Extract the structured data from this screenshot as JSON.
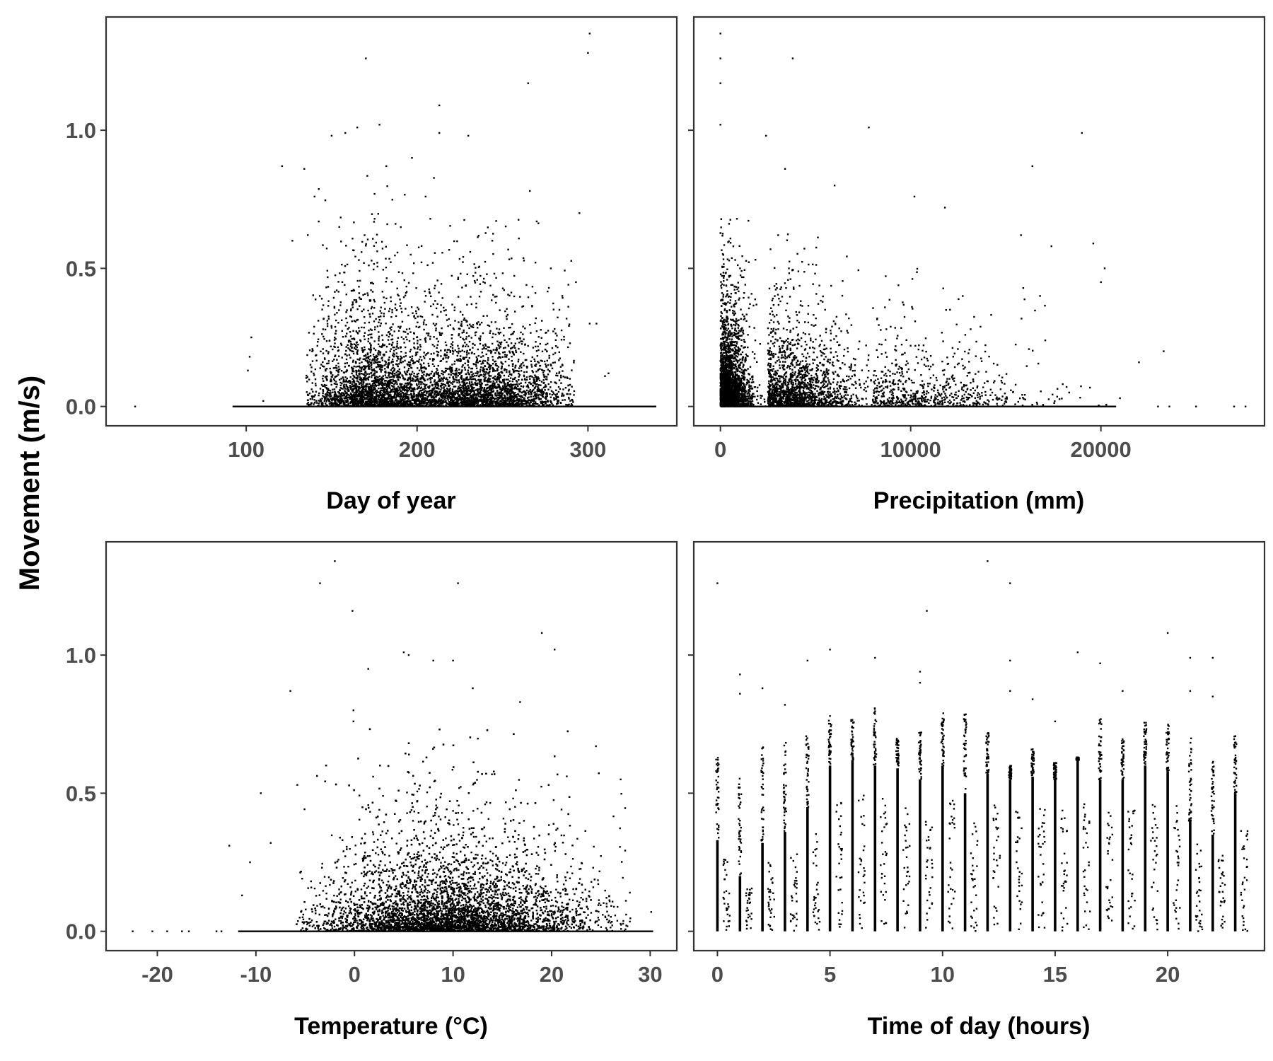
{
  "figure": {
    "ylabel": "Movement (m/s)",
    "point_color": "#000000",
    "tick_text_color": "#4d4d4d",
    "frame_color": "#333333"
  },
  "chart_data": [
    {
      "type": "scatter",
      "panel": "top-left",
      "xlabel": "Day of year",
      "ylabel": "Movement (m/s)",
      "xlim": [
        18,
        352
      ],
      "ylim": [
        -0.07,
        1.41
      ],
      "xticks": [
        100,
        200,
        300
      ],
      "xtick_labels": [
        "100",
        "200",
        "300"
      ],
      "yticks": [
        0,
        0.5,
        1.0
      ],
      "ytick_labels": [
        "0.0",
        "0.5",
        "1.0"
      ],
      "grid": false,
      "zero_line_x": [
        92,
        340
      ],
      "points": [
        [
          35,
          0
        ],
        [
          101,
          0.13
        ],
        [
          103,
          0.25
        ],
        [
          102,
          0.18
        ],
        [
          110,
          0.02
        ],
        [
          121,
          0.87
        ],
        [
          127,
          0.6
        ],
        [
          134,
          0.86
        ],
        [
          140,
          0.76
        ],
        [
          150,
          0.98
        ],
        [
          158,
          0.99
        ],
        [
          165,
          1.01
        ],
        [
          170,
          1.26
        ],
        [
          178,
          1.02
        ],
        [
          182,
          0.87
        ],
        [
          197,
          0.9
        ],
        [
          205,
          0.76
        ],
        [
          213,
          1.09
        ],
        [
          213,
          0.99
        ],
        [
          230,
          0.98
        ],
        [
          244,
          0.6
        ],
        [
          265,
          1.17
        ],
        [
          266,
          0.78
        ],
        [
          270,
          0.67
        ],
        [
          295,
          0.7
        ],
        [
          300,
          1.28
        ],
        [
          301,
          1.35
        ],
        [
          301,
          0.3
        ],
        [
          305,
          0.3
        ],
        [
          310,
          0.11
        ],
        [
          312,
          0.12
        ],
        [
          285,
          0.4
        ],
        [
          293,
          0.45
        ],
        [
          320,
          0
        ],
        [
          338,
          0
        ]
      ],
      "density_clusters": [
        {
          "x_center": 172,
          "x_spread": 18,
          "y_scale": 0.16,
          "n": 1800
        },
        {
          "x_center": 240,
          "x_spread": 26,
          "y_scale": 0.13,
          "n": 2200
        },
        {
          "x_center": 205,
          "x_spread": 40,
          "y_scale": 0.11,
          "n": 1200
        }
      ],
      "density_x_range": [
        135,
        292
      ]
    },
    {
      "type": "scatter",
      "panel": "top-right",
      "xlabel": "Precipitation (mm)",
      "ylabel": "Movement (m/s)",
      "xlim": [
        -1400,
        28600
      ],
      "ylim": [
        -0.07,
        1.41
      ],
      "xticks": [
        0,
        10000,
        20000
      ],
      "xtick_labels": [
        "0",
        "10000",
        "20000"
      ],
      "yticks": [
        0,
        0.5,
        1.0
      ],
      "ytick_labels": [
        "0.0",
        "0.5",
        "1.0"
      ],
      "grid": false,
      "zero_line_x": [
        0,
        20800
      ],
      "points": [
        [
          0,
          1.35
        ],
        [
          0,
          1.26
        ],
        [
          0,
          1.17
        ],
        [
          0,
          1.02
        ],
        [
          3800,
          1.26
        ],
        [
          7800,
          1.01
        ],
        [
          19000,
          0.99
        ],
        [
          16400,
          0.87
        ],
        [
          10200,
          0.76
        ],
        [
          11800,
          0.72
        ],
        [
          15800,
          0.62
        ],
        [
          17400,
          0.58
        ],
        [
          19600,
          0.59
        ],
        [
          20200,
          0.5
        ],
        [
          20000,
          0.45
        ],
        [
          16800,
          0.4
        ],
        [
          23300,
          0.2
        ],
        [
          22000,
          0.16
        ],
        [
          21000,
          0.03
        ],
        [
          23000,
          0
        ],
        [
          23600,
          0
        ],
        [
          25000,
          0
        ],
        [
          27000,
          0
        ],
        [
          27600,
          0
        ],
        [
          2400,
          0.98
        ],
        [
          3400,
          0.86
        ],
        [
          6000,
          0.8
        ]
      ],
      "density_clusters": [
        {
          "x_center": 0,
          "x_spread": 700,
          "y_scale": 0.13,
          "n": 2600
        },
        {
          "x_center": 2500,
          "x_spread": 2200,
          "y_scale": 0.12,
          "n": 1700
        },
        {
          "x_center": 8000,
          "x_spread": 4000,
          "y_scale": 0.1,
          "n": 700
        }
      ],
      "density_x_range": [
        0,
        20600
      ]
    },
    {
      "type": "scatter",
      "panel": "bottom-left",
      "xlabel": "Temperature (°C)",
      "ylabel": "Movement (m/s)",
      "xlim": [
        -25.2,
        32.7
      ],
      "ylim": [
        -0.07,
        1.41
      ],
      "xticks": [
        -20,
        -10,
        0,
        10,
        20,
        30
      ],
      "xtick_labels": [
        "-20",
        "-10",
        "0",
        "10",
        "20",
        "30"
      ],
      "yticks": [
        0,
        0.5,
        1.0
      ],
      "ytick_labels": [
        "0.0",
        "0.5",
        "1.0"
      ],
      "grid": false,
      "zero_line_x": [
        -11.8,
        30.3
      ],
      "points": [
        [
          -22.5,
          0
        ],
        [
          -20.5,
          0
        ],
        [
          -19,
          0
        ],
        [
          -17.5,
          0
        ],
        [
          -16.8,
          0
        ],
        [
          -14,
          0
        ],
        [
          -13.5,
          0
        ],
        [
          -12.7,
          0.31
        ],
        [
          -11.4,
          0.13
        ],
        [
          -10.6,
          0.25
        ],
        [
          -9.5,
          0.5
        ],
        [
          -8.5,
          0.32
        ],
        [
          -6.5,
          0.87
        ],
        [
          -5.8,
          0.53
        ],
        [
          -3.5,
          1.26
        ],
        [
          -2,
          1.34
        ],
        [
          -0.2,
          1.16
        ],
        [
          1.4,
          0.95
        ],
        [
          5,
          1.01
        ],
        [
          5.5,
          1.0
        ],
        [
          8,
          0.98
        ],
        [
          10,
          0.98
        ],
        [
          10.5,
          1.26
        ],
        [
          12,
          0.88
        ],
        [
          16.8,
          0.83
        ],
        [
          19,
          1.08
        ],
        [
          20.3,
          1.02
        ],
        [
          24.5,
          0.67
        ],
        [
          27,
          0.55
        ],
        [
          30.1,
          0.07
        ],
        [
          -0.1,
          0.8
        ],
        [
          -0.1,
          0.76
        ]
      ],
      "density_clusters": [
        {
          "x_center": 9,
          "x_spread": 6,
          "y_scale": 0.14,
          "n": 4800
        },
        {
          "x_center": 12,
          "x_spread": 8,
          "y_scale": 0.11,
          "n": 1600
        }
      ],
      "density_x_range": [
        -6,
        28
      ]
    },
    {
      "type": "scatter",
      "panel": "bottom-right",
      "xlabel": "Time of day (hours)",
      "ylabel": "Movement (m/s)",
      "xlim": [
        -1.05,
        24.3
      ],
      "ylim": [
        -0.07,
        1.41
      ],
      "xticks": [
        0,
        5,
        10,
        15,
        20
      ],
      "xtick_labels": [
        "0",
        "5",
        "10",
        "15",
        "20"
      ],
      "yticks": [
        0,
        0.5,
        1.0
      ],
      "ytick_labels": [
        "0.0",
        "0.5",
        "1.0"
      ],
      "grid": false,
      "hours": [
        0,
        1,
        2,
        3,
        4,
        5,
        6,
        7,
        8,
        9,
        10,
        11,
        12,
        13,
        14,
        15,
        16,
        17,
        18,
        19,
        20,
        21,
        22,
        23
      ],
      "dense_top": [
        0.33,
        0.2,
        0.32,
        0.36,
        0.45,
        0.6,
        0.62,
        0.6,
        0.59,
        0.55,
        0.6,
        0.5,
        0.57,
        0.55,
        0.56,
        0.55,
        0.62,
        0.55,
        0.55,
        0.6,
        0.58,
        0.4,
        0.35,
        0.5
      ],
      "sparse_top": [
        0.65,
        0.56,
        0.67,
        0.7,
        0.72,
        0.78,
        0.77,
        0.81,
        0.7,
        0.72,
        0.8,
        0.79,
        0.72,
        0.6,
        0.66,
        0.61,
        0.63,
        0.77,
        0.7,
        0.76,
        0.75,
        0.7,
        0.62,
        0.71
      ],
      "points": [
        [
          0,
          1.26
        ],
        [
          1,
          0.93
        ],
        [
          1,
          0.86
        ],
        [
          2,
          0.88
        ],
        [
          3,
          0.82
        ],
        [
          4,
          0.98
        ],
        [
          5,
          1.02
        ],
        [
          7,
          0.99
        ],
        [
          9,
          0.9
        ],
        [
          9,
          0.94
        ],
        [
          9.3,
          1.16
        ],
        [
          12,
          1.34
        ],
        [
          13,
          1.26
        ],
        [
          13,
          0.98
        ],
        [
          13,
          0.87
        ],
        [
          14,
          0.84
        ],
        [
          15,
          0.76
        ],
        [
          16,
          1.01
        ],
        [
          17,
          0.97
        ],
        [
          18,
          0.87
        ],
        [
          20,
          1.08
        ],
        [
          21,
          0.99
        ],
        [
          21,
          0.87
        ],
        [
          22,
          0.99
        ],
        [
          22,
          0.85
        ]
      ]
    }
  ]
}
